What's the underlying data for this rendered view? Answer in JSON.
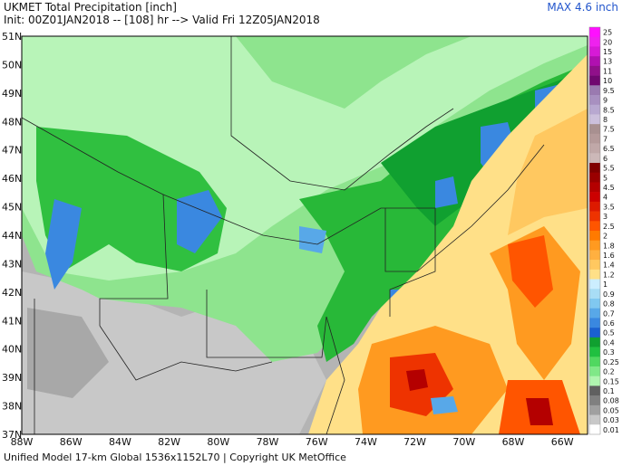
{
  "header": {
    "title": "UKMET Total Precipitation [inch]",
    "subtitle": "Init: 00Z01JAN2018 -- [108] hr --> Valid Fri 12Z05JAN2018",
    "max": "MAX 4.6 inch"
  },
  "axes": {
    "lat_labels": [
      "51N",
      "50N",
      "49N",
      "48N",
      "47N",
      "46N",
      "45N",
      "44N",
      "43N",
      "42N",
      "41N",
      "40N",
      "39N",
      "38N",
      "37N"
    ],
    "lon_labels": [
      "88W",
      "86W",
      "84W",
      "82W",
      "80W",
      "78W",
      "76W",
      "74W",
      "72W",
      "70W",
      "68W",
      "66W"
    ]
  },
  "colorbar": {
    "levels": [
      25,
      20,
      15,
      13,
      11,
      10,
      9.5,
      9,
      8.5,
      8,
      7.5,
      7,
      6.5,
      6,
      5.5,
      5,
      4.5,
      4,
      3.5,
      3,
      2.5,
      2,
      1.8,
      1.6,
      1.4,
      1.2,
      1,
      0.9,
      0.8,
      0.7,
      0.6,
      0.5,
      0.4,
      0.3,
      0.25,
      0.2,
      0.15,
      0.1,
      0.08,
      0.05,
      0.03,
      0.01
    ],
    "colors": [
      "#ff10ff",
      "#ee22ee",
      "#d61ad6",
      "#b010b0",
      "#90108a",
      "#700870",
      "#9a7ab0",
      "#a890c0",
      "#b8a8d0",
      "#ccc0dc",
      "#a89090",
      "#b49a9a",
      "#c0a8a8",
      "#ccb8b8",
      "#800000",
      "#9a0000",
      "#b40000",
      "#cc0000",
      "#dd1a00",
      "#ee3300",
      "#ff5500",
      "#ff7a00",
      "#ff9a20",
      "#ffb040",
      "#ffc860",
      "#ffe088",
      "#cceeff",
      "#a8ddf5",
      "#80c8f0",
      "#58a8e8",
      "#3a88e0",
      "#1a60d0",
      "#10a030",
      "#20c040",
      "#50d860",
      "#80e888",
      "#b0f5b0",
      "#606060",
      "#808080",
      "#a0a0a0",
      "#c8c8c8",
      "#ffffff"
    ]
  },
  "footer": "Unified Model 17-km Global 1536x1152L70 | Copyright UK MetOffice"
}
